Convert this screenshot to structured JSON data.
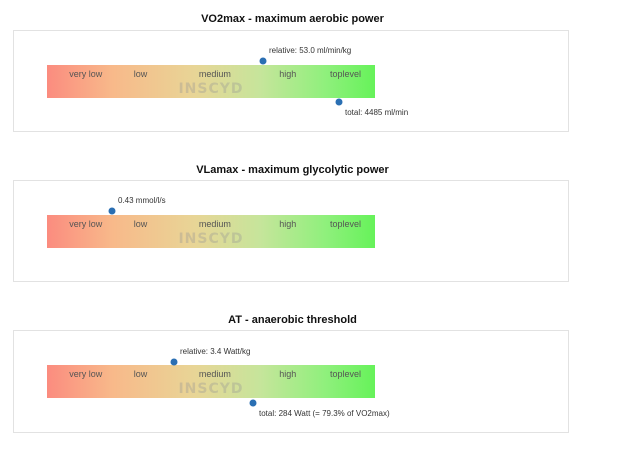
{
  "levels": [
    "very low",
    "low",
    "medium",
    "high",
    "toplevel"
  ],
  "watermark": "INSCYD",
  "sections": [
    {
      "title": "VO2max - maximum aerobic power",
      "markers": [
        {
          "label": "relative: 53.0 ml/min/kg",
          "position": 0.66,
          "side": "above"
        },
        {
          "label": "total: 4485 ml/min",
          "position": 0.89,
          "side": "below"
        }
      ]
    },
    {
      "title": "VLamax - maximum glycolytic power",
      "markers": [
        {
          "label": "0.43 mmol/l/s",
          "position": 0.2,
          "side": "above"
        }
      ]
    },
    {
      "title": "AT - anaerobic threshold",
      "markers": [
        {
          "label": "relative: 3.4 Watt/kg",
          "position": 0.39,
          "side": "above"
        },
        {
          "label": "total: 284 Watt (= 79.3% of VO2max)",
          "position": 0.63,
          "side": "below"
        }
      ]
    }
  ]
}
